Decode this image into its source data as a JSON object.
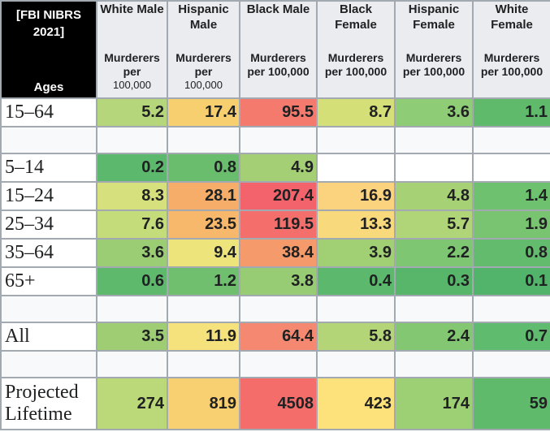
{
  "header": {
    "corner_title_line1": "[FBI NIBRS",
    "corner_title_line2": "2021]",
    "corner_ages": "Ages",
    "columns": [
      {
        "group": "White Male",
        "unit_lines": [
          "Murderers",
          "per",
          "100,000"
        ],
        "compact": true
      },
      {
        "group": "Hispanic Male",
        "unit_lines": [
          "Murderers",
          "per",
          "100,000"
        ],
        "compact": true
      },
      {
        "group": "Black Male",
        "unit_lines": [
          "Murderers",
          "per 100,000"
        ],
        "compact": false
      },
      {
        "group": "Black Female",
        "unit_lines": [
          "Murderers",
          "per 100,000"
        ],
        "compact": false
      },
      {
        "group": "Hispanic Female",
        "unit_lines": [
          "Murderers",
          "per 100,000"
        ],
        "compact": false
      },
      {
        "group": "White Female",
        "unit_lines": [
          "Murderers",
          "per 100,000"
        ],
        "compact": false
      }
    ]
  },
  "rows": [
    {
      "type": "data",
      "label": "15–64",
      "values": [
        "5.2",
        "17.4",
        "95.5",
        "8.7",
        "3.6",
        "1.1"
      ],
      "colors": [
        "#b5d67a",
        "#f7cf6e",
        "#f47a6e",
        "#d4df78",
        "#8fcc76",
        "#5fba6c"
      ]
    },
    {
      "type": "gap"
    },
    {
      "type": "data",
      "label": "5–14",
      "values": [
        "0.2",
        "0.8",
        "4.9",
        "",
        "",
        ""
      ],
      "colors": [
        "#5cb86d",
        "#6abd6d",
        "#a4cf74",
        "",
        "",
        ""
      ]
    },
    {
      "type": "data",
      "label": "15–24",
      "values": [
        "8.3",
        "28.1",
        "207.4",
        "16.9",
        "4.8",
        "1.4"
      ],
      "colors": [
        "#d6e07c",
        "#f6ad69",
        "#f3636b",
        "#fbd27d",
        "#a6d174",
        "#6ec26f"
      ]
    },
    {
      "type": "data",
      "label": "25–34",
      "values": [
        "7.6",
        "23.5",
        "119.5",
        "13.3",
        "5.7",
        "1.9"
      ],
      "colors": [
        "#c5dc7a",
        "#f8b86b",
        "#f46e6c",
        "#f8da7c",
        "#b0d478",
        "#79c470"
      ]
    },
    {
      "type": "data",
      "label": "35–64",
      "values": [
        "3.6",
        "9.4",
        "38.4",
        "3.9",
        "2.2",
        "0.8"
      ],
      "colors": [
        "#9acd74",
        "#ede57c",
        "#f59b6b",
        "#a0cf74",
        "#7fc672",
        "#63bb6d"
      ]
    },
    {
      "type": "data",
      "label": "65+",
      "values": [
        "0.6",
        "1.2",
        "3.8",
        "0.4",
        "0.3",
        "0.1"
      ],
      "colors": [
        "#5fb96d",
        "#6fbf6e",
        "#97cc74",
        "#5cb86c",
        "#58b66b",
        "#52b46a"
      ]
    },
    {
      "type": "gap"
    },
    {
      "type": "data",
      "label": "All",
      "values": [
        "3.5",
        "11.9",
        "64.4",
        "5.8",
        "2.4",
        "0.7"
      ],
      "colors": [
        "#9ecd74",
        "#f6e27c",
        "#f58870",
        "#b3d578",
        "#83c772",
        "#5fbb6d"
      ]
    },
    {
      "type": "gap"
    },
    {
      "type": "tall",
      "label_lines": [
        "Projected",
        "Lifetime"
      ],
      "values": [
        "274",
        "819",
        "4508",
        "423",
        "174",
        "59"
      ],
      "colors": [
        "#bcd97a",
        "#f8d071",
        "#f46d6b",
        "#fde27c",
        "#9dcf74",
        "#5fba6c"
      ]
    }
  ]
}
